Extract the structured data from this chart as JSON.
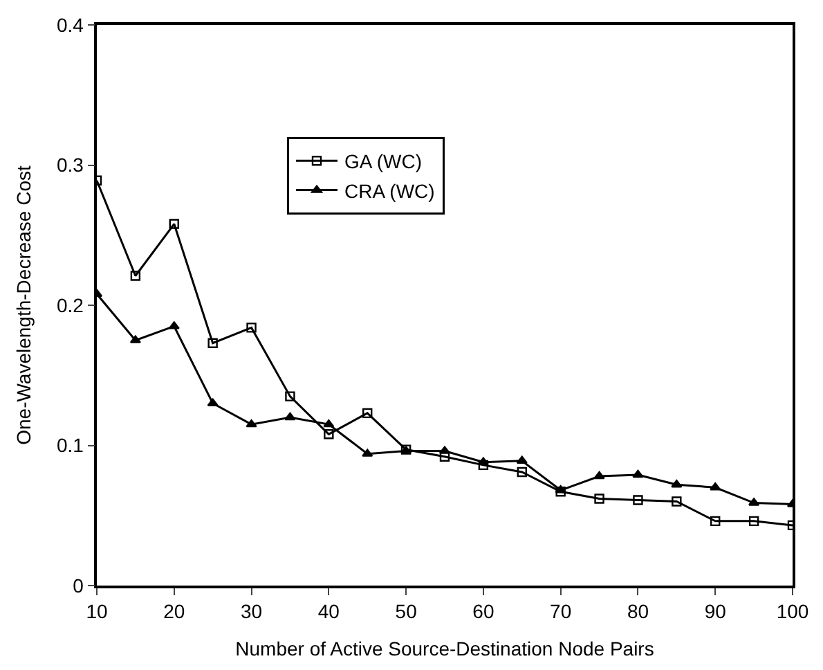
{
  "chart_data": {
    "type": "line",
    "xlabel": "Number of Active Source-Destination Node Pairs",
    "ylabel": "One-Wavelength-Decrease Cost",
    "x": [
      10,
      15,
      20,
      25,
      30,
      35,
      40,
      45,
      50,
      55,
      60,
      65,
      70,
      75,
      80,
      85,
      90,
      95,
      100
    ],
    "series": [
      {
        "name": "GA (WC)",
        "color": "#000000",
        "marker": "square",
        "values": [
          0.289,
          0.221,
          0.258,
          0.173,
          0.184,
          0.135,
          0.108,
          0.123,
          0.097,
          0.092,
          0.086,
          0.081,
          0.067,
          0.062,
          0.061,
          0.06,
          0.046,
          0.046,
          0.043
        ]
      },
      {
        "name": "CRA (WC)",
        "color": "#000000",
        "marker": "triangle",
        "values": [
          0.208,
          0.175,
          0.185,
          0.13,
          0.115,
          0.12,
          0.115,
          0.094,
          0.096,
          0.096,
          0.088,
          0.089,
          0.068,
          0.078,
          0.079,
          0.072,
          0.07,
          0.059,
          0.058
        ]
      }
    ],
    "xlim": [
      10,
      100
    ],
    "xticks": [
      10,
      20,
      30,
      40,
      50,
      60,
      70,
      80,
      90,
      100
    ],
    "ylim": [
      0,
      0.4
    ],
    "yticks": [
      0,
      0.1,
      0.2,
      0.3,
      0.4
    ],
    "legend": "top",
    "line_style": "solid"
  }
}
